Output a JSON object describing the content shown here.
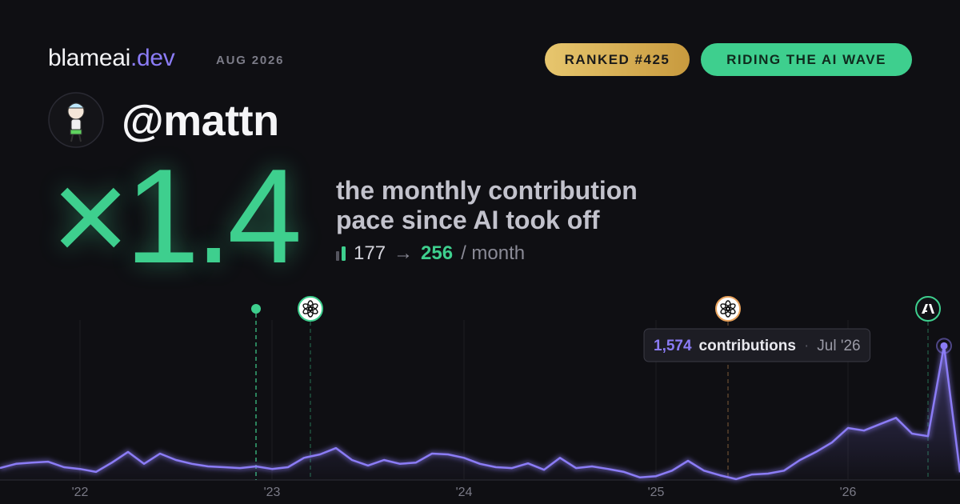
{
  "header": {
    "brand": "blameai",
    "brand_suffix": ".dev",
    "date": "AUG 2026",
    "badges": [
      "RANKED #425",
      "RIDING THE AI WAVE"
    ]
  },
  "user": {
    "handle": "@mattn"
  },
  "hero": {
    "multiplier": "×1.4",
    "caption": "the monthly contribution pace since AI took off",
    "before": 177,
    "arrow": "→",
    "after": 256,
    "unit": "/ month"
  },
  "chart_data": {
    "type": "line",
    "color": "#8b7cf6",
    "x": [
      0,
      1,
      2,
      3,
      4,
      5,
      6,
      7,
      8,
      9,
      10,
      11,
      12,
      13,
      14,
      15,
      16,
      17,
      18,
      19,
      20,
      21,
      22,
      23,
      24,
      25,
      26,
      27,
      28,
      29,
      30,
      31,
      32,
      33,
      34,
      35,
      36,
      37,
      38,
      39,
      40,
      41,
      42,
      43,
      44,
      45,
      46,
      47,
      48,
      49,
      50,
      51,
      52,
      53,
      54,
      55,
      56,
      57,
      58,
      59,
      60
    ],
    "values": [
      140,
      190,
      205,
      215,
      150,
      130,
      95,
      205,
      330,
      190,
      310,
      235,
      190,
      160,
      150,
      140,
      160,
      130,
      150,
      260,
      300,
      375,
      235,
      170,
      235,
      190,
      205,
      310,
      300,
      260,
      190,
      150,
      140,
      195,
      120,
      260,
      140,
      160,
      130,
      95,
      30,
      45,
      110,
      225,
      110,
      55,
      10,
      65,
      75,
      110,
      235,
      330,
      440,
      610,
      580,
      655,
      730,
      545,
      515,
      1574,
      90
    ],
    "value_labels": [
      null,
      null,
      null,
      null,
      null,
      null,
      null,
      null,
      null,
      null,
      null,
      null,
      null,
      null,
      null,
      null,
      null,
      null,
      null,
      null,
      null,
      null,
      null,
      null,
      null,
      null,
      null,
      null,
      null,
      null,
      null,
      null,
      null,
      null,
      null,
      null,
      null,
      null,
      null,
      null,
      null,
      null,
      null,
      null,
      null,
      null,
      null,
      null,
      null,
      null,
      null,
      null,
      null,
      null,
      null,
      null,
      null,
      null,
      null,
      "1,574",
      null
    ],
    "tooltip_unit": "contributions",
    "tooltip_date": "Jul '26",
    "tooltip_index": 59,
    "xlim": [
      0,
      60
    ],
    "ylim": [
      0,
      2000
    ],
    "xticks": [
      {
        "value": 5,
        "label": "'22"
      },
      {
        "value": 17,
        "label": "'23"
      },
      {
        "value": 29,
        "label": "'24"
      },
      {
        "value": 41,
        "label": "'25"
      },
      {
        "value": 53,
        "label": "'26"
      }
    ],
    "grid": true,
    "events": [
      {
        "x": 16,
        "icon": "dot",
        "color": "#3ecf8e"
      },
      {
        "x": 19.4,
        "icon": "openai",
        "color": "#3ecf8e"
      },
      {
        "x": 45.5,
        "icon": "openai",
        "color": "#e8a25c"
      },
      {
        "x": 58,
        "icon": "anthropic",
        "color": "#3ecf8e"
      }
    ]
  }
}
